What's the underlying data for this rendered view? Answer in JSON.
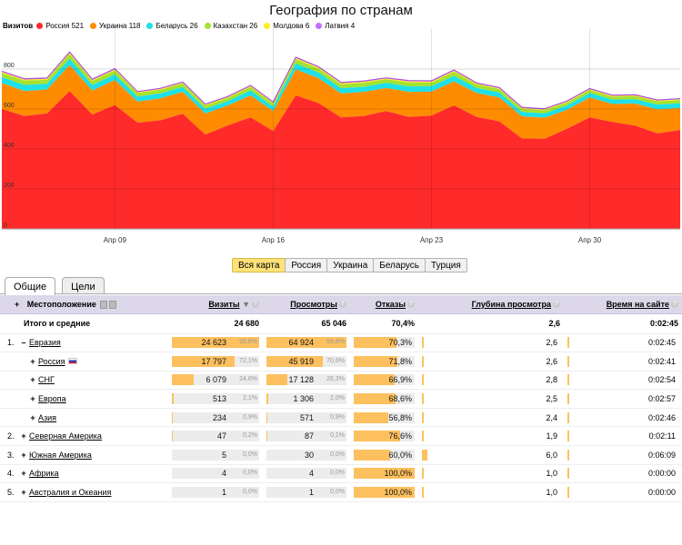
{
  "chart_data": {
    "type": "area",
    "title": "География по странам",
    "legend_lead": "Визитов",
    "legend_position": "top-left",
    "grid": true,
    "ylim": [
      0,
      1000
    ],
    "y_ticks": [
      0,
      200,
      400,
      600,
      800
    ],
    "y_tick_labels": [
      "0",
      "200",
      "400",
      "600",
      "800"
    ],
    "x_ticks": [
      {
        "index": 5,
        "label": "Апр 09"
      },
      {
        "index": 12,
        "label": "Апр 16"
      },
      {
        "index": 19,
        "label": "Апр 23"
      },
      {
        "index": 26,
        "label": "Апр 30"
      }
    ],
    "series": [
      {
        "name": "Россия 521",
        "color": "#ff2a2a",
        "values": [
          600,
          565,
          578,
          690,
          572,
          620,
          532,
          543,
          576,
          472,
          518,
          558,
          490,
          668,
          630,
          558,
          565,
          590,
          560,
          567,
          618,
          560,
          538,
          453,
          451,
          501,
          558,
          535,
          517,
          478,
          495
        ]
      },
      {
        "name": "Украина 118",
        "color": "#ff8c00",
        "values": [
          130,
          125,
          120,
          130,
          120,
          125,
          105,
          110,
          110,
          105,
          100,
          110,
          100,
          130,
          125,
          120,
          120,
          115,
          125,
          120,
          120,
          120,
          120,
          110,
          105,
          95,
          100,
          90,
          110,
          120,
          110
        ]
      },
      {
        "name": "Беларусь 26",
        "color": "#1ee0e8",
        "values": [
          30,
          30,
          28,
          32,
          28,
          28,
          25,
          25,
          24,
          24,
          22,
          25,
          22,
          30,
          28,
          26,
          26,
          26,
          28,
          27,
          28,
          25,
          25,
          22,
          22,
          22,
          22,
          22,
          22,
          24,
          24
        ]
      },
      {
        "name": "Казахстан 26",
        "color": "#a6e22e",
        "values": [
          20,
          22,
          20,
          24,
          20,
          20,
          18,
          18,
          18,
          16,
          16,
          18,
          16,
          22,
          20,
          20,
          20,
          18,
          20,
          18,
          20,
          18,
          17,
          16,
          16,
          15,
          15,
          15,
          15,
          16,
          16
        ]
      },
      {
        "name": "Молдова 6",
        "color": "#ffee22",
        "values": [
          5,
          5,
          5,
          5,
          5,
          5,
          4,
          4,
          4,
          4,
          4,
          4,
          4,
          5,
          5,
          5,
          5,
          4,
          5,
          5,
          5,
          4,
          4,
          4,
          4,
          4,
          4,
          4,
          4,
          4,
          4
        ]
      },
      {
        "name": "Латвия 4",
        "color": "#c070ff",
        "values": [
          4,
          4,
          4,
          4,
          4,
          4,
          3,
          3,
          3,
          3,
          3,
          3,
          3,
          4,
          4,
          4,
          4,
          3,
          4,
          4,
          4,
          3,
          3,
          3,
          3,
          3,
          3,
          3,
          3,
          3,
          3
        ]
      }
    ]
  },
  "region_tabs": [
    {
      "label": "Вся карта",
      "active": true
    },
    {
      "label": "Россия",
      "active": false
    },
    {
      "label": "Украина",
      "active": false
    },
    {
      "label": "Беларусь",
      "active": false
    },
    {
      "label": "Турция",
      "active": false
    }
  ],
  "view_tabs": [
    {
      "label": "Общие",
      "active": true
    },
    {
      "label": "Цели",
      "active": false
    }
  ],
  "table": {
    "headers": {
      "location": "Местоположение",
      "visits": "Визиты",
      "views": "Просмотры",
      "bounces": "Отказы",
      "depth": "Глубина просмотра",
      "time": "Время на сайте"
    },
    "total": {
      "label": "Итого и средние",
      "visits": "24 680",
      "views": "65 046",
      "bounces": "70,4%",
      "depth": "2,6",
      "time": "0:02:45"
    },
    "rows": [
      {
        "idx": "1.",
        "pm": "–",
        "indent": 0,
        "name": "Евразия",
        "flag": false,
        "visits": "24 623",
        "visits_pct": "99,8%",
        "visits_frac": 0.998,
        "views": "64 924",
        "views_pct": "99,8%",
        "views_frac": 0.998,
        "bounces": "70,3%",
        "bounces_frac": 0.703,
        "depth": "2,6",
        "time": "0:02:45"
      },
      {
        "idx": "",
        "pm": "+",
        "indent": 1,
        "name": "Россия",
        "flag": true,
        "visits": "17 797",
        "visits_pct": "72,1%",
        "visits_frac": 0.721,
        "views": "45 919",
        "views_pct": "70,6%",
        "views_frac": 0.706,
        "bounces": "71,8%",
        "bounces_frac": 0.718,
        "depth": "2,6",
        "time": "0:02:41"
      },
      {
        "idx": "",
        "pm": "+",
        "indent": 1,
        "name": "СНГ",
        "flag": false,
        "visits": "6 079",
        "visits_pct": "24,6%",
        "visits_frac": 0.246,
        "views": "17 128",
        "views_pct": "26,3%",
        "views_frac": 0.263,
        "bounces": "66,9%",
        "bounces_frac": 0.669,
        "depth": "2,8",
        "time": "0:02:54"
      },
      {
        "idx": "",
        "pm": "+",
        "indent": 1,
        "name": "Европа",
        "flag": false,
        "visits": "513",
        "visits_pct": "2,1%",
        "visits_frac": 0.021,
        "views": "1 306",
        "views_pct": "2,0%",
        "views_frac": 0.02,
        "bounces": "68,6%",
        "bounces_frac": 0.686,
        "depth": "2,5",
        "time": "0:02:57"
      },
      {
        "idx": "",
        "pm": "+",
        "indent": 1,
        "name": "Азия",
        "flag": false,
        "visits": "234",
        "visits_pct": "0,9%",
        "visits_frac": 0.009,
        "views": "571",
        "views_pct": "0,9%",
        "views_frac": 0.009,
        "bounces": "56,8%",
        "bounces_frac": 0.568,
        "depth": "2,4",
        "time": "0:02:46"
      },
      {
        "idx": "2.",
        "pm": "+",
        "indent": 0,
        "name": "Северная Америка",
        "flag": false,
        "visits": "47",
        "visits_pct": "0,2%",
        "visits_frac": 0.002,
        "views": "87",
        "views_pct": "0,1%",
        "views_frac": 0.001,
        "bounces": "76,6%",
        "bounces_frac": 0.766,
        "depth": "1,9",
        "time": "0:02:11"
      },
      {
        "idx": "3.",
        "pm": "+",
        "indent": 0,
        "name": "Южная Америка",
        "flag": false,
        "visits": "5",
        "visits_pct": "0,0%",
        "visits_frac": 0,
        "views": "30",
        "views_pct": "0,0%",
        "views_frac": 0,
        "bounces": "60,0%",
        "bounces_frac": 0.6,
        "depth": "6,0",
        "time": "0:06:09"
      },
      {
        "idx": "4.",
        "pm": "+",
        "indent": 0,
        "name": "Африка",
        "flag": false,
        "visits": "4",
        "visits_pct": "0,0%",
        "visits_frac": 0,
        "views": "4",
        "views_pct": "0,0%",
        "views_frac": 0,
        "bounces": "100,0%",
        "bounces_frac": 1.0,
        "depth": "1,0",
        "time": "0:00:00"
      },
      {
        "idx": "5.",
        "pm": "+",
        "indent": 0,
        "name": "Австралия и Океания",
        "flag": false,
        "visits": "1",
        "visits_pct": "0,0%",
        "visits_frac": 0,
        "views": "1",
        "views_pct": "0,0%",
        "views_frac": 0,
        "bounces": "100,0%",
        "bounces_frac": 1.0,
        "depth": "1,0",
        "time": "0:00:00"
      }
    ]
  }
}
